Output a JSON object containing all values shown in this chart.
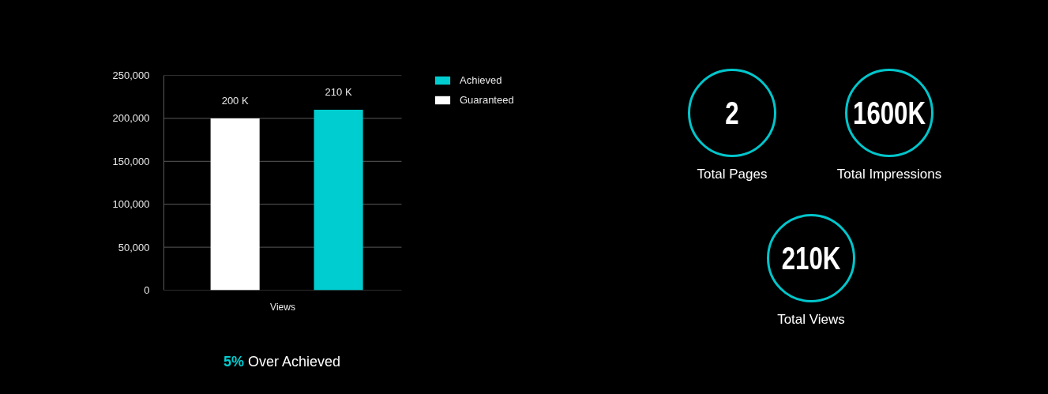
{
  "chart_data": [
    {
      "type": "bar",
      "categories": [
        "Views"
      ],
      "series": [
        {
          "name": "Guaranteed",
          "color": "#ffffff",
          "values": [
            200000
          ],
          "value_labels": [
            "200 K"
          ]
        },
        {
          "name": "Achieved",
          "color": "#00cdd0",
          "values": [
            210000
          ],
          "value_labels": [
            "210 K"
          ]
        }
      ],
      "ylim": [
        0,
        250000
      ],
      "yticks": [
        0,
        {
          "value": 50000,
          "label": "50,000"
        },
        {
          "value": 100000,
          "label": "100,000"
        },
        {
          "value": 150000,
          "label": "150,000"
        },
        {
          "value": 200000,
          "label": "200,000"
        },
        {
          "value": 250000,
          "label": "250,000"
        }
      ],
      "grid": "y",
      "legend": "top right",
      "annotations": [
        "5% Over Achieved"
      ]
    },
    {
      "type": "other",
      "annotations": [
        "2",
        "Total Pages",
        "1600K",
        "Total Impressions",
        "210K",
        "Total Views"
      ]
    }
  ]
}
